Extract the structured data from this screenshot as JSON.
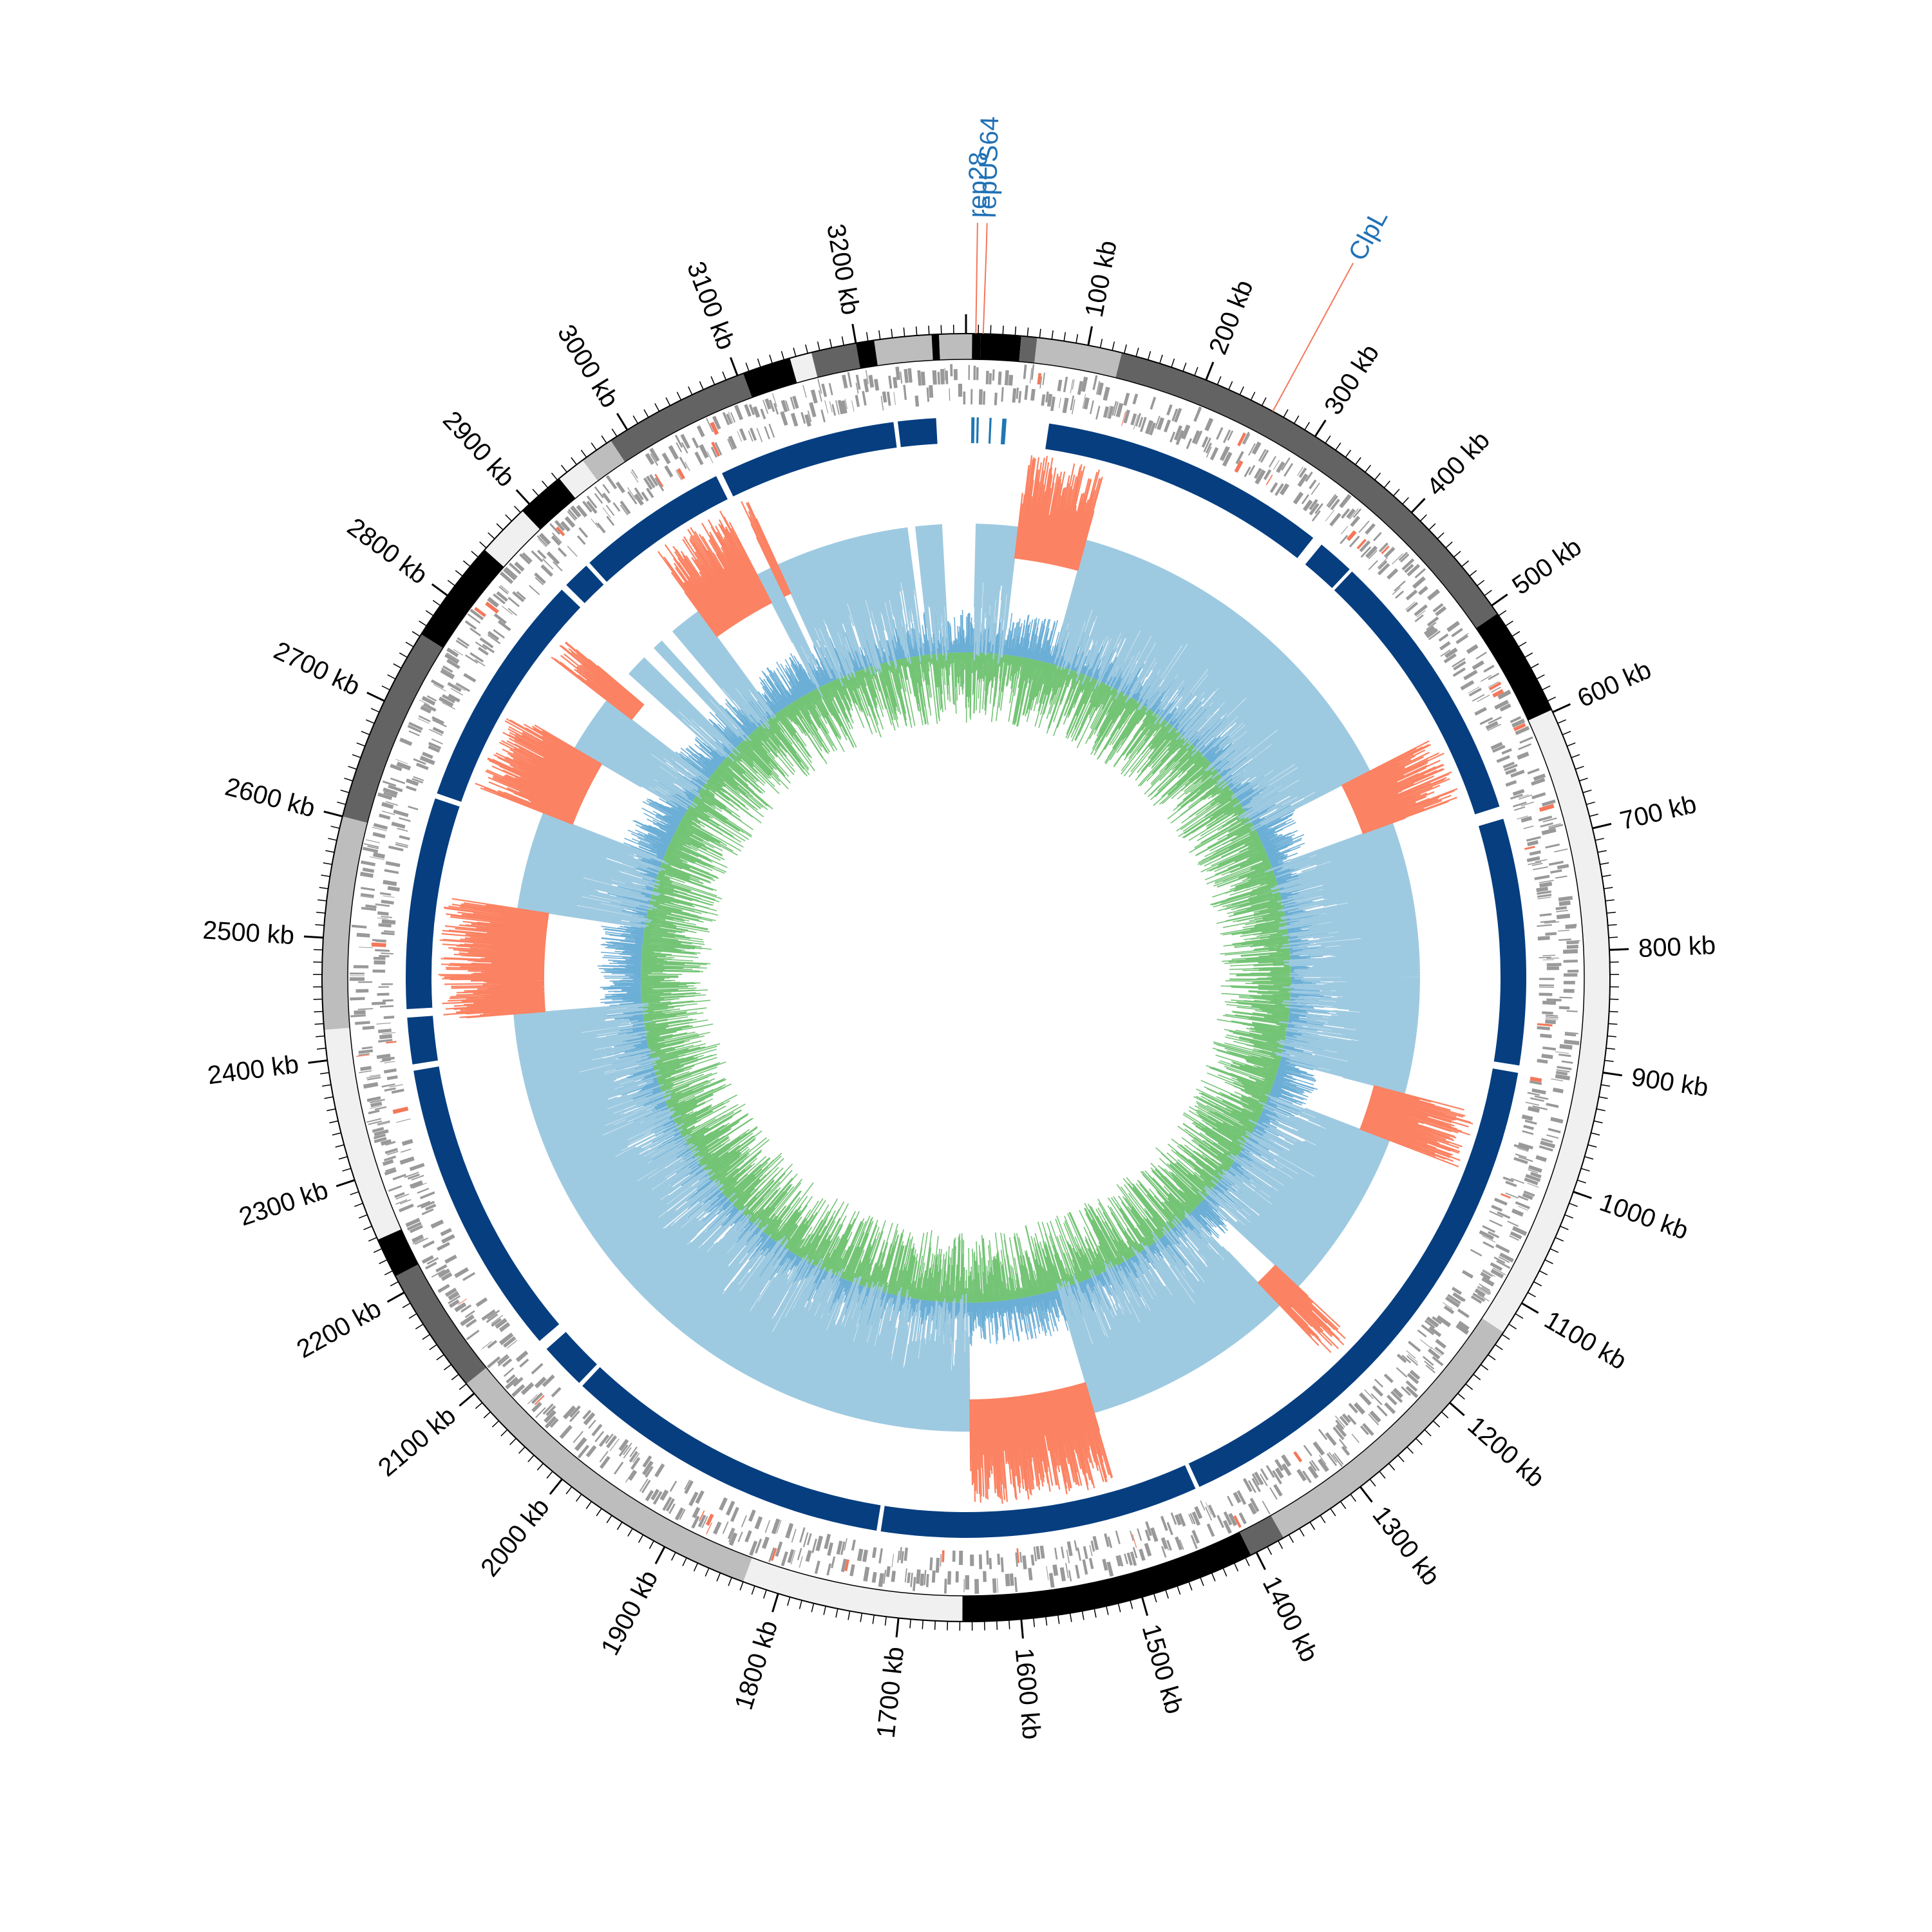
{
  "genome_length_kb": 3290,
  "scale": {
    "unit_suffix": " kb",
    "major_ticks_kb": [
      100,
      200,
      300,
      400,
      500,
      600,
      700,
      800,
      900,
      1000,
      1100,
      1200,
      1300,
      1400,
      1500,
      1600,
      1700,
      1800,
      1900,
      2000,
      2100,
      2200,
      2300,
      2400,
      2500,
      2600,
      2700,
      2800,
      2900,
      3000,
      3100,
      3200
    ],
    "minor_tick_step_kb": 10
  },
  "colors": {
    "outline": "#000000",
    "cds": "#999999",
    "cds_highlight": "#f4775a",
    "block": "#063e80",
    "block_secondary": "#1f78b4",
    "gc_content_positive": "#9ecae1",
    "gc_content_low": "#fb8262",
    "gc_skew_outer": "#6baed6",
    "gc_skew_inner": "#74c476",
    "label_text": "#2171b5",
    "label_line": "#f4775a",
    "segment_shades": [
      "#f0f0f0",
      "#bdbdbd",
      "#636363",
      "#000000"
    ]
  },
  "contig_segments": [
    {
      "start": 0,
      "end": 5,
      "shade": 1
    },
    {
      "start": 5,
      "end": 12,
      "shade": 3
    },
    {
      "start": 12,
      "end": 45,
      "shade": 3
    },
    {
      "start": 45,
      "end": 58,
      "shade": 2
    },
    {
      "start": 58,
      "end": 128,
      "shade": 1
    },
    {
      "start": 128,
      "end": 508,
      "shade": 2
    },
    {
      "start": 508,
      "end": 598,
      "shade": 3
    },
    {
      "start": 598,
      "end": 1128,
      "shade": 0
    },
    {
      "start": 1128,
      "end": 1375,
      "shade": 1
    },
    {
      "start": 1375,
      "end": 1405,
      "shade": 2
    },
    {
      "start": 1405,
      "end": 1648,
      "shade": 3
    },
    {
      "start": 1648,
      "end": 1830,
      "shade": 0
    },
    {
      "start": 1830,
      "end": 2110,
      "shade": 1
    },
    {
      "start": 2110,
      "end": 2215,
      "shade": 2
    },
    {
      "start": 2215,
      "end": 2248,
      "shade": 3
    },
    {
      "start": 2248,
      "end": 2425,
      "shade": 0
    },
    {
      "start": 2425,
      "end": 2600,
      "shade": 1
    },
    {
      "start": 2600,
      "end": 2762,
      "shade": 2
    },
    {
      "start": 2762,
      "end": 2848,
      "shade": 3
    },
    {
      "start": 2848,
      "end": 2892,
      "shade": 0
    },
    {
      "start": 2892,
      "end": 2932,
      "shade": 3
    },
    {
      "start": 2932,
      "end": 2956,
      "shade": 0
    },
    {
      "start": 2956,
      "end": 2984,
      "shade": 1
    },
    {
      "start": 2984,
      "end": 3105,
      "shade": 2
    },
    {
      "start": 3105,
      "end": 3145,
      "shade": 3
    },
    {
      "start": 3145,
      "end": 3163,
      "shade": 0
    },
    {
      "start": 3163,
      "end": 3200,
      "shade": 2
    },
    {
      "start": 3200,
      "end": 3215,
      "shade": 3
    },
    {
      "start": 3215,
      "end": 3262,
      "shade": 1
    },
    {
      "start": 3262,
      "end": 3268,
      "shade": 3
    },
    {
      "start": 3268,
      "end": 3290,
      "shade": 1
    }
  ],
  "alignment_blocks": [
    {
      "start": 5,
      "end": 8
    },
    {
      "start": 10,
      "end": 12
    },
    {
      "start": 22,
      "end": 24
    },
    {
      "start": 34,
      "end": 38
    },
    {
      "start": 78,
      "end": 350
    },
    {
      "start": 360,
      "end": 395
    },
    {
      "start": 398,
      "end": 660
    },
    {
      "start": 672,
      "end": 905
    },
    {
      "start": 912,
      "end": 1420
    },
    {
      "start": 1424,
      "end": 1725
    },
    {
      "start": 1729,
      "end": 2040
    },
    {
      "start": 2044,
      "end": 2088
    },
    {
      "start": 2098,
      "end": 2380
    },
    {
      "start": 2386,
      "end": 2430
    },
    {
      "start": 2438,
      "end": 2638
    },
    {
      "start": 2643,
      "end": 2868
    },
    {
      "start": 2874,
      "end": 2900
    },
    {
      "start": 2904,
      "end": 3048
    },
    {
      "start": 3054,
      "end": 3222
    },
    {
      "start": 3226,
      "end": 3262
    }
  ],
  "gc_content_low_regions": [
    {
      "start": 60,
      "end": 140
    },
    {
      "start": 575,
      "end": 640
    },
    {
      "start": 958,
      "end": 1015
    },
    {
      "start": 1215,
      "end": 1245
    },
    {
      "start": 1495,
      "end": 1640
    },
    {
      "start": 2425,
      "end": 2548
    },
    {
      "start": 2662,
      "end": 2745
    },
    {
      "start": 2812,
      "end": 2836
    },
    {
      "start": 2960,
      "end": 3040
    },
    {
      "start": 3057,
      "end": 3066
    }
  ],
  "gc_content_gaps": [
    {
      "start": 2836,
      "end": 2852
    },
    {
      "start": 2877,
      "end": 2893
    },
    {
      "start": 2905,
      "end": 2922
    },
    {
      "start": 3222,
      "end": 3232
    },
    {
      "start": 3262,
      "end": 3290
    },
    {
      "start": 0,
      "end": 12
    }
  ],
  "annotations": [
    {
      "label": "rep28",
      "position_kb": 8
    },
    {
      "label": "repUS64",
      "position_kb": 14
    },
    {
      "label": "ClpL",
      "position_kb": 260
    }
  ]
}
